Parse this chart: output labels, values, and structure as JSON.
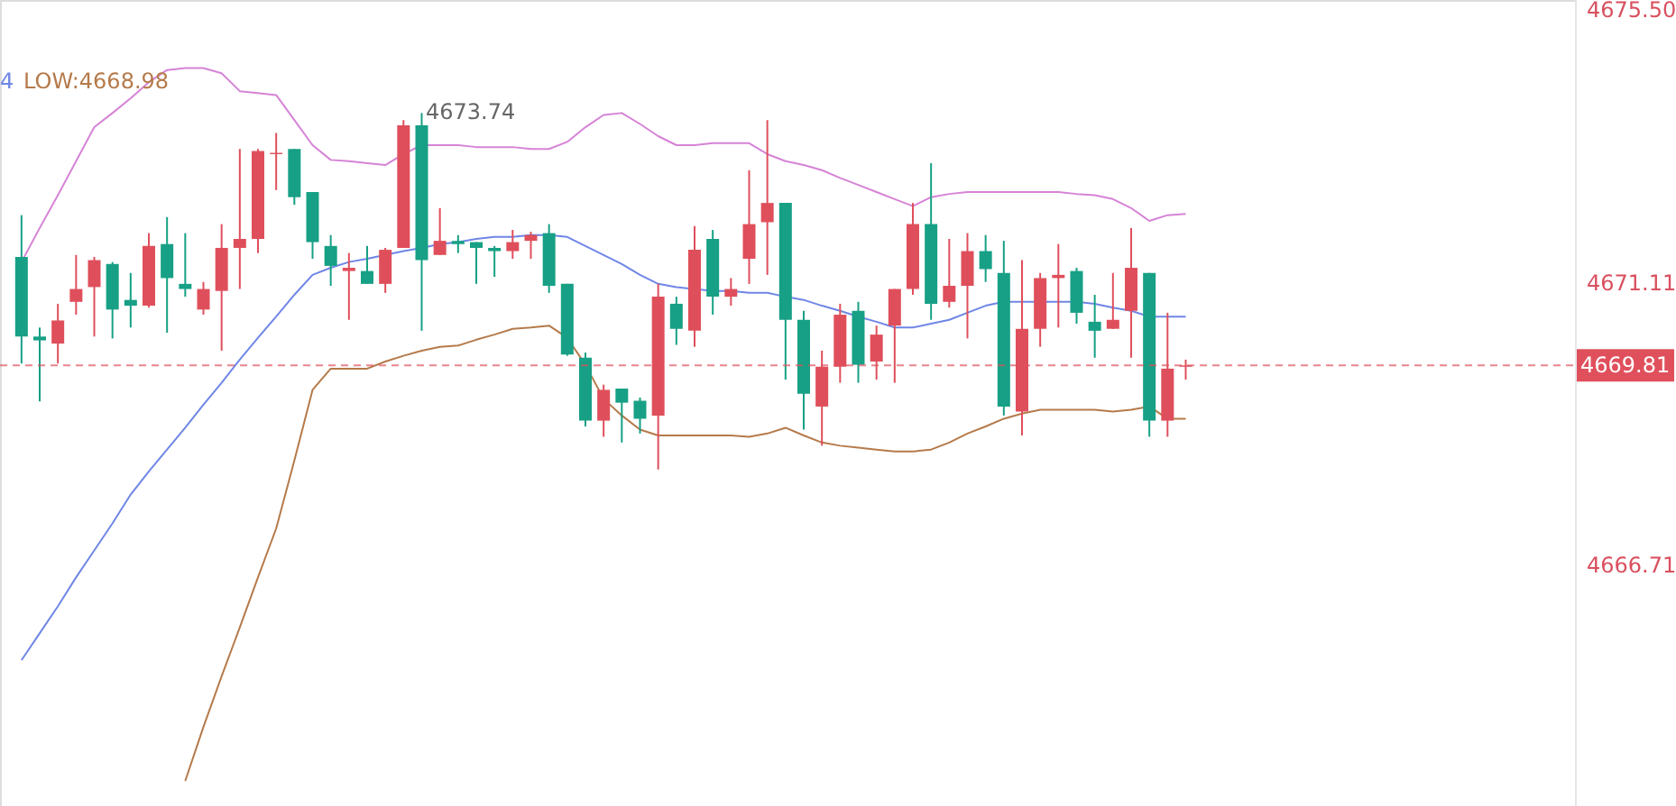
{
  "chart_data": {
    "type": "candlestick",
    "categories": [
      null,
      null,
      null,
      null,
      null,
      null,
      null,
      null,
      null,
      null,
      null,
      null,
      null,
      null,
      null,
      null,
      null,
      null,
      null,
      null,
      null,
      null,
      null,
      null,
      null,
      null,
      null,
      null,
      null,
      null,
      null,
      null,
      null,
      null,
      null,
      null,
      null,
      null,
      null,
      null,
      null,
      null,
      null,
      null,
      null,
      null,
      null,
      null,
      null,
      null,
      null,
      null,
      null,
      null,
      null,
      null,
      null,
      null,
      null,
      null,
      null,
      null,
      null,
      null,
      null
    ],
    "ylim": [
      4662.95,
      4675.5
    ],
    "yticks": [
      {
        "value": 4675.5,
        "label": "4675.50"
      },
      4671.11,
      4666.71
    ],
    "tick_labels": "y",
    "grid": false,
    "annotations": [
      "4",
      "LOW:4668.98",
      "4673.74"
    ],
    "ref_lines": [
      {
        "axis": "y",
        "value": 4669.81,
        "label": "4669.81",
        "color": "#e0505c",
        "line_style": "dashed"
      }
    ],
    "series": [
      {
        "ohlc": [
          [
            4671.5,
            4672.15,
            4669.84,
            4670.26
          ],
          [
            4670.26,
            4670.4,
            4669.25,
            4670.2
          ],
          [
            4670.15,
            4670.77,
            4669.84,
            4670.51
          ],
          [
            4670.8,
            4671.53,
            4670.6,
            4671.0
          ],
          [
            4671.03,
            4671.5,
            4670.26,
            4671.45
          ],
          [
            4671.39,
            4671.42,
            4670.23,
            4670.68
          ],
          [
            4670.83,
            4671.25,
            4670.4,
            4670.74
          ],
          [
            4670.74,
            4671.87,
            4670.71,
            4671.67
          ],
          [
            4671.7,
            4672.12,
            4670.32,
            4671.17
          ],
          [
            4671.08,
            4671.87,
            4670.88,
            4671.0
          ],
          [
            4670.68,
            4671.11,
            4670.6,
            4671.0
          ],
          [
            4670.97,
            4672.01,
            4670.04,
            4671.64
          ],
          [
            4671.64,
            4673.18,
            4671.0,
            4671.78
          ],
          [
            4671.78,
            4673.18,
            4671.56,
            4673.15
          ],
          [
            4673.1,
            4673.43,
            4672.54,
            4673.12
          ],
          [
            4673.18,
            4673.18,
            4672.31,
            4672.43
          ],
          [
            4672.51,
            4672.51,
            4671.47,
            4671.73
          ],
          [
            4671.67,
            4671.84,
            4671.05,
            4671.36
          ],
          [
            4671.28,
            4671.56,
            4670.52,
            4671.33
          ],
          [
            4671.28,
            4671.67,
            4671.08,
            4671.08
          ],
          [
            4671.08,
            4671.64,
            4670.94,
            4671.61
          ],
          [
            4671.64,
            4673.63,
            4671.64,
            4673.55
          ],
          [
            4673.55,
            4673.74,
            4670.35,
            4671.45
          ],
          [
            4671.53,
            4672.26,
            4671.53,
            4671.75
          ],
          [
            4671.75,
            4671.84,
            4671.56,
            4671.7
          ],
          [
            4671.73,
            4671.73,
            4671.08,
            4671.64
          ],
          [
            4671.64,
            4671.67,
            4671.19,
            4671.59
          ],
          [
            4671.59,
            4671.92,
            4671.47,
            4671.73
          ],
          [
            4671.75,
            4671.89,
            4671.47,
            4671.84
          ],
          [
            4671.87,
            4672.01,
            4670.94,
            4671.05
          ],
          [
            4671.08,
            4671.08,
            4669.96,
            4669.98
          ],
          [
            4669.93,
            4670.01,
            4668.86,
            4668.95
          ],
          [
            4668.95,
            4669.51,
            4668.7,
            4669.43
          ],
          [
            4669.45,
            4669.45,
            4668.61,
            4669.23
          ],
          [
            4669.26,
            4669.31,
            4668.75,
            4668.98
          ],
          [
            4669.03,
            4671.08,
            4668.19,
            4670.88
          ],
          [
            4670.77,
            4670.88,
            4670.13,
            4670.38
          ],
          [
            4670.35,
            4671.98,
            4670.1,
            4671.61
          ],
          [
            4671.78,
            4671.92,
            4670.6,
            4670.88
          ],
          [
            4670.88,
            4671.17,
            4670.74,
            4671.0
          ],
          [
            4671.47,
            4672.85,
            4671.08,
            4672.01
          ],
          [
            4672.04,
            4673.63,
            4671.22,
            4672.34
          ],
          [
            4672.34,
            4672.34,
            4669.59,
            4670.52
          ],
          [
            4670.52,
            4670.66,
            4668.81,
            4669.37
          ],
          [
            4669.17,
            4670.04,
            4668.56,
            4669.79
          ],
          [
            4669.79,
            4670.77,
            4669.54,
            4670.6
          ],
          [
            4670.66,
            4670.8,
            4669.54,
            4669.82
          ],
          [
            4669.87,
            4670.43,
            4669.59,
            4670.29
          ],
          [
            4670.43,
            4671.0,
            4669.54,
            4671.0
          ],
          [
            4671.0,
            4672.34,
            4670.91,
            4672.01
          ],
          [
            4672.01,
            4672.96,
            4670.52,
            4670.77
          ],
          [
            4670.8,
            4671.78,
            4670.71,
            4671.05
          ],
          [
            4671.05,
            4671.87,
            4670.23,
            4671.59
          ],
          [
            4671.59,
            4671.84,
            4671.11,
            4671.31
          ],
          [
            4671.25,
            4671.75,
            4669.03,
            4669.17
          ],
          [
            4669.09,
            4671.45,
            4668.72,
            4670.38
          ],
          [
            4670.38,
            4671.25,
            4670.1,
            4671.17
          ],
          [
            4671.17,
            4671.7,
            4670.4,
            4671.22
          ],
          [
            4671.28,
            4671.33,
            4670.46,
            4670.63
          ],
          [
            4670.49,
            4670.91,
            4669.93,
            4670.35
          ],
          [
            4670.38,
            4671.25,
            4670.38,
            4670.52
          ],
          [
            4670.66,
            4671.95,
            4669.93,
            4671.33
          ],
          [
            4671.25,
            4671.25,
            4668.7,
            4668.95
          ],
          [
            4668.95,
            4670.63,
            4668.7,
            4669.76
          ],
          [
            4669.79,
            4669.9,
            4669.59,
            4669.81
          ]
        ],
        "colors": [
          "#17a085",
          "#17a085",
          "#df4f5b",
          "#df4f5b",
          "#df4f5b",
          "#17a085",
          "#17a085",
          "#df4f5b",
          "#17a085",
          "#17a085",
          "#df4f5b",
          "#df4f5b",
          "#df4f5b",
          "#df4f5b",
          "#df4f5b",
          "#17a085",
          "#17a085",
          "#17a085",
          "#df4f5b",
          "#17a085",
          "#df4f5b",
          "#df4f5b",
          "#17a085",
          "#df4f5b",
          "#17a085",
          "#17a085",
          "#17a085",
          "#df4f5b",
          "#df4f5b",
          "#17a085",
          "#17a085",
          "#17a085",
          "#df4f5b",
          "#17a085",
          "#17a085",
          "#df4f5b",
          "#17a085",
          "#df4f5b",
          "#17a085",
          "#df4f5b",
          "#df4f5b",
          "#df4f5b",
          "#17a085",
          "#17a085",
          "#df4f5b",
          "#df4f5b",
          "#17a085",
          "#df4f5b",
          "#df4f5b",
          "#df4f5b",
          "#17a085",
          "#df4f5b",
          "#df4f5b",
          "#17a085",
          "#17a085",
          "#df4f5b",
          "#df4f5b",
          "#df4f5b",
          "#17a085",
          "#17a085",
          "#df4f5b",
          "#df4f5b",
          "#17a085",
          "#df4f5b",
          "#df4f5b"
        ]
      },
      {
        "type": "line",
        "color": "#d683d6",
        "values": [
          4671.42,
          4671.95,
          4672.46,
          4672.99,
          4673.52,
          4673.74,
          4673.97,
          4674.22,
          4674.41,
          4674.44,
          4674.44,
          4674.36,
          4674.08,
          4674.05,
          4674.02,
          4673.63,
          4673.24,
          4673.01,
          4672.99,
          4672.96,
          4672.93,
          4673.1,
          4673.24,
          4673.24,
          4673.24,
          4673.21,
          4673.21,
          4673.21,
          4673.18,
          4673.18,
          4673.29,
          4673.52,
          4673.71,
          4673.74,
          4673.57,
          4673.38,
          4673.24,
          4673.24,
          4673.27,
          4673.27,
          4673.27,
          4673.1,
          4672.99,
          4672.93,
          4672.85,
          4672.73,
          4672.62,
          4672.51,
          4672.4,
          4672.29,
          4672.43,
          4672.48,
          4672.51,
          4672.51,
          4672.51,
          4672.51,
          4672.51,
          4672.51,
          4672.48,
          4672.46,
          4672.4,
          4672.26,
          4672.06,
          4672.15,
          4672.17
        ]
      },
      {
        "type": "line",
        "color": "#6f86e6",
        "values": [
          4665.22,
          4665.64,
          4666.06,
          4666.51,
          4666.93,
          4667.35,
          4667.8,
          4668.16,
          4668.5,
          4668.84,
          4669.2,
          4669.54,
          4669.9,
          4670.24,
          4670.57,
          4670.91,
          4671.22,
          4671.33,
          4671.42,
          4671.47,
          4671.53,
          4671.59,
          4671.64,
          4671.7,
          4671.73,
          4671.78,
          4671.81,
          4671.81,
          4671.84,
          4671.84,
          4671.81,
          4671.67,
          4671.53,
          4671.39,
          4671.22,
          4671.08,
          4671.03,
          4671.0,
          4670.97,
          4670.97,
          4670.94,
          4670.94,
          4670.88,
          4670.83,
          4670.74,
          4670.66,
          4670.57,
          4670.49,
          4670.4,
          4670.4,
          4670.46,
          4670.52,
          4670.63,
          4670.74,
          4670.8,
          4670.8,
          4670.8,
          4670.8,
          4670.8,
          4670.77,
          4670.71,
          4670.66,
          4670.57,
          4670.57,
          4670.57
        ]
      },
      {
        "type": "line",
        "color": "#b57a4a",
        "values": [
          null,
          null,
          null,
          null,
          null,
          null,
          null,
          null,
          null,
          4663.34,
          4664.18,
          4664.97,
          4665.73,
          4666.51,
          4667.27,
          4668.33,
          4669.43,
          4669.76,
          4669.76,
          4669.76,
          4669.87,
          4669.96,
          4670.04,
          4670.1,
          4670.12,
          4670.21,
          4670.29,
          4670.38,
          4670.4,
          4670.43,
          4670.24,
          4669.82,
          4669.29,
          4669.03,
          4668.81,
          4668.72,
          4668.72,
          4668.72,
          4668.72,
          4668.72,
          4668.7,
          4668.75,
          4668.84,
          4668.72,
          4668.61,
          4668.56,
          4668.53,
          4668.5,
          4668.47,
          4668.47,
          4668.5,
          4668.61,
          4668.75,
          4668.86,
          4668.98,
          4669.06,
          4669.12,
          4669.12,
          4669.12,
          4669.12,
          4669.09,
          4669.12,
          4669.17,
          4668.98,
          4668.98
        ]
      }
    ]
  }
}
